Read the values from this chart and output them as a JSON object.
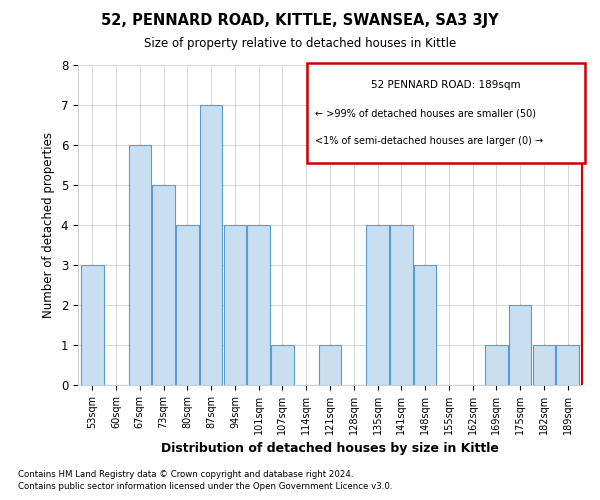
{
  "title": "52, PENNARD ROAD, KITTLE, SWANSEA, SA3 3JY",
  "subtitle": "Size of property relative to detached houses in Kittle",
  "xlabel": "Distribution of detached houses by size in Kittle",
  "ylabel": "Number of detached properties",
  "categories": [
    "53sqm",
    "60sqm",
    "67sqm",
    "73sqm",
    "80sqm",
    "87sqm",
    "94sqm",
    "101sqm",
    "107sqm",
    "114sqm",
    "121sqm",
    "128sqm",
    "135sqm",
    "141sqm",
    "148sqm",
    "155sqm",
    "162sqm",
    "169sqm",
    "175sqm",
    "182sqm",
    "189sqm"
  ],
  "values": [
    3,
    0,
    6,
    5,
    4,
    7,
    4,
    4,
    1,
    0,
    1,
    0,
    4,
    4,
    3,
    0,
    0,
    1,
    2,
    1,
    1
  ],
  "bar_color": "#c9dff0",
  "bar_edge_color": "#5b9bd5",
  "highlight_index": 20,
  "highlight_edge_color": "#cc0000",
  "ylim": [
    0,
    8
  ],
  "yticks": [
    0,
    1,
    2,
    3,
    4,
    5,
    6,
    7,
    8
  ],
  "legend_title": "52 PENNARD ROAD: 189sqm",
  "legend_line1": "← >99% of detached houses are smaller (50)",
  "legend_line2": "<1% of semi-detached houses are larger (0) →",
  "footnote1": "Contains HM Land Registry data © Crown copyright and database right 2024.",
  "footnote2": "Contains public sector information licensed under the Open Government Licence v3.0.",
  "background_color": "#ffffff",
  "grid_color": "#d0d0d0"
}
